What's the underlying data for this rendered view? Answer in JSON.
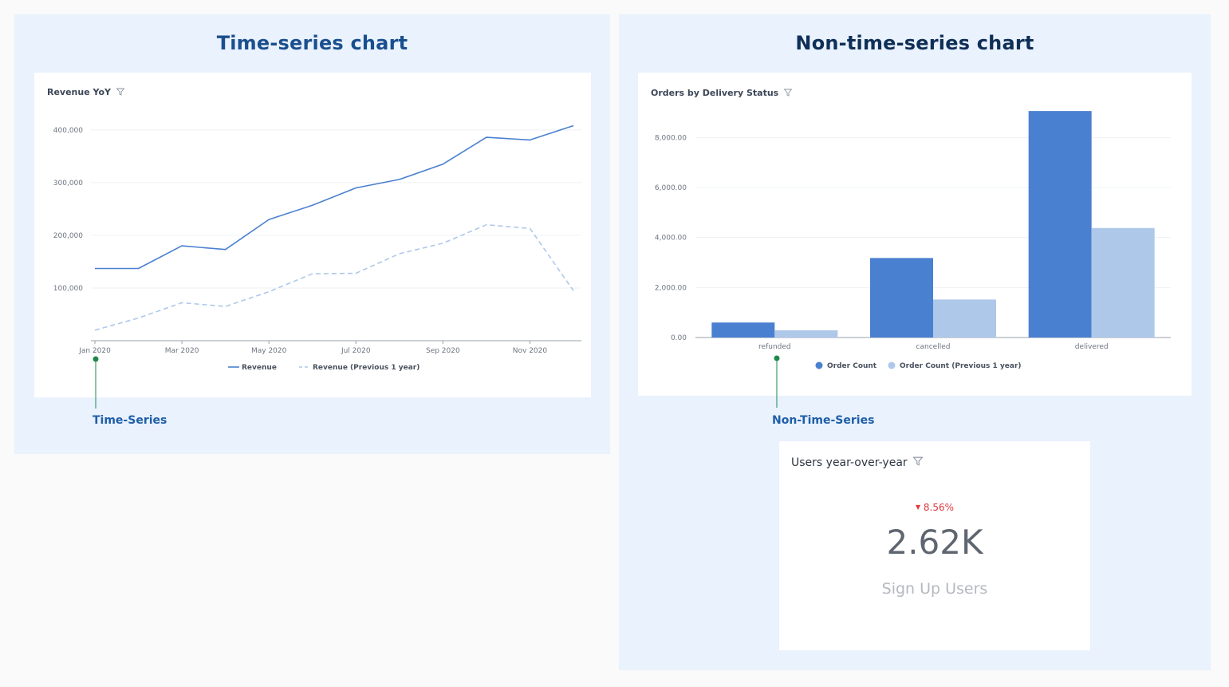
{
  "colors": {
    "panel_bg": "#e9f2fd",
    "title_left": "#1a4f8f",
    "title_right": "#0f2f57",
    "series_current": "#4a80d0",
    "series_previous": "#aec8ea",
    "callout_green": "#1e8a4a",
    "negative": "#e0383d"
  },
  "left_panel": {
    "title": "Time-series chart",
    "callout": "Time-Series"
  },
  "right_panel": {
    "title": "Non-time-series chart",
    "callout": "Non-Time-Series"
  },
  "revenue_card": {
    "title": "Revenue YoY",
    "icon": "filter-icon"
  },
  "orders_card": {
    "title": "Orders by Delivery Status",
    "icon": "filter-icon"
  },
  "users_card": {
    "title": "Users year-over-year",
    "icon": "filter-icon",
    "change": "8.56%",
    "change_direction": "down",
    "value": "2.62K",
    "label": "Sign Up Users"
  },
  "chart_data": [
    {
      "type": "line",
      "title": "Revenue YoY",
      "x": [
        "Jan 2020",
        "Feb 2020",
        "Mar 2020",
        "Apr 2020",
        "May 2020",
        "Jun 2020",
        "Jul 2020",
        "Aug 2020",
        "Sep 2020",
        "Oct 2020",
        "Nov 2020",
        "Dec 2020"
      ],
      "x_tick_labels": [
        "Jan 2020",
        "Mar 2020",
        "May 2020",
        "Jul 2020",
        "Sep 2020",
        "Nov 2020"
      ],
      "y_ticks": [
        100000,
        200000,
        300000,
        400000
      ],
      "y_tick_labels": [
        "100,000",
        "200,000",
        "300,000",
        "400,000"
      ],
      "ylim": [
        0,
        430000
      ],
      "grid": true,
      "legend": "bottom",
      "series": [
        {
          "name": "Revenue",
          "style": "solid",
          "values": [
            137000,
            137000,
            180000,
            173000,
            230000,
            257000,
            290000,
            306000,
            335000,
            386000,
            381000,
            408000
          ]
        },
        {
          "name": "Revenue (Previous 1 year)",
          "style": "dashed",
          "values": [
            20000,
            43000,
            72000,
            65000,
            93000,
            127000,
            128000,
            165000,
            185000,
            220000,
            213000,
            95000
          ]
        }
      ]
    },
    {
      "type": "bar",
      "title": "Orders by Delivery Status",
      "categories": [
        "refunded",
        "cancelled",
        "delivered"
      ],
      "y_ticks": [
        0,
        2000,
        4000,
        6000,
        8000
      ],
      "y_tick_labels": [
        "0.00",
        "2,000.00",
        "4,000.00",
        "6,000.00",
        "8,000.00"
      ],
      "ylim": [
        0,
        9000
      ],
      "grid": true,
      "legend": "bottom",
      "series": [
        {
          "name": "Order Count",
          "values": [
            600,
            3180,
            9060
          ]
        },
        {
          "name": "Order Count (Previous 1 year)",
          "values": [
            290,
            1520,
            4380
          ]
        }
      ]
    }
  ]
}
